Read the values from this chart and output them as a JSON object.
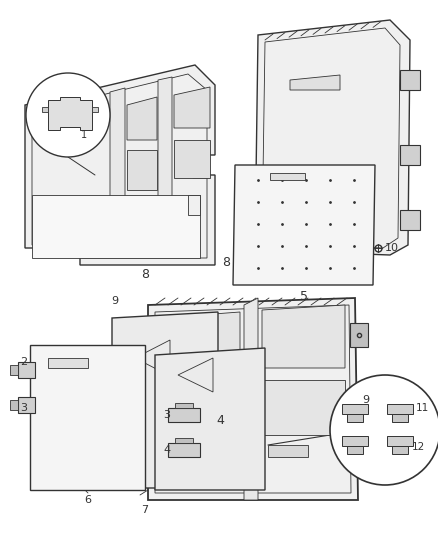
{
  "background_color": "#ffffff",
  "fig_width": 4.38,
  "fig_height": 5.33,
  "dpi": 100,
  "line_color": "#333333",
  "fill_light": "#f0f0f0",
  "fill_mid": "#e8e8e8",
  "fill_white": "#ffffff"
}
